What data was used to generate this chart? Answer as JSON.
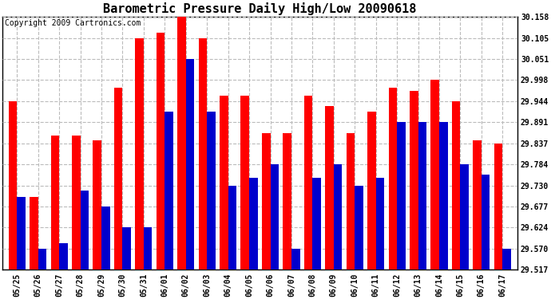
{
  "title": "Barometric Pressure Daily High/Low 20090618",
  "copyright": "Copyright 2009 Cartronics.com",
  "dates": [
    "05/25",
    "05/26",
    "05/27",
    "05/28",
    "05/29",
    "05/30",
    "05/31",
    "06/01",
    "06/02",
    "06/03",
    "06/04",
    "06/05",
    "06/06",
    "06/07",
    "06/08",
    "06/09",
    "06/10",
    "06/11",
    "06/12",
    "06/13",
    "06/14",
    "06/15",
    "06/16",
    "06/17"
  ],
  "high": [
    29.944,
    29.701,
    29.858,
    29.858,
    29.844,
    29.978,
    30.105,
    30.118,
    30.158,
    30.105,
    29.958,
    29.958,
    29.864,
    29.864,
    29.958,
    29.931,
    29.864,
    29.918,
    29.978,
    29.971,
    29.998,
    29.944,
    29.844,
    29.837
  ],
  "low": [
    29.701,
    29.57,
    29.584,
    29.717,
    29.677,
    29.624,
    29.624,
    29.917,
    30.051,
    29.917,
    29.73,
    29.75,
    29.784,
    29.57,
    29.75,
    29.784,
    29.73,
    29.75,
    29.891,
    29.891,
    29.891,
    29.784,
    29.757,
    29.57
  ],
  "ymin": 29.517,
  "ymax": 30.158,
  "yticks": [
    29.517,
    29.57,
    29.624,
    29.677,
    29.73,
    29.784,
    29.837,
    29.891,
    29.944,
    29.998,
    30.051,
    30.105,
    30.158
  ],
  "high_color": "#ff0000",
  "low_color": "#0000cc",
  "bg_color": "#ffffff",
  "grid_color": "#bbbbbb",
  "title_fontsize": 11,
  "copyright_fontsize": 7
}
